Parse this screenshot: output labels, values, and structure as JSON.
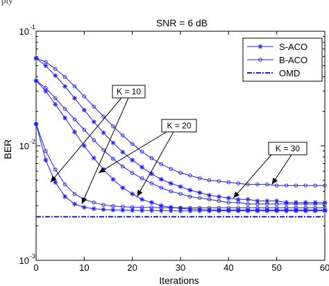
{
  "caption_fragment": "ply",
  "chart_data": {
    "type": "line",
    "title": "SNR = 6 dB",
    "xlabel": "Iterations",
    "ylabel": "BER",
    "xlim": [
      0,
      60
    ],
    "ylim": [
      0.001,
      0.1
    ],
    "yscale": "log",
    "xticks": [
      "0",
      "10",
      "20",
      "30",
      "40",
      "50",
      "60"
    ],
    "yticks": [
      {
        "value": 0.1,
        "base": "10",
        "exp": "-1"
      },
      {
        "value": 0.01,
        "base": "10",
        "exp": "-2"
      },
      {
        "value": 0.001,
        "base": "10",
        "exp": "-3"
      }
    ],
    "grid": false,
    "legend": {
      "placement": "top-right",
      "entries": [
        {
          "label": "S-ACO",
          "marker": "star",
          "style": "solid"
        },
        {
          "label": "B-ACO",
          "marker": "circle",
          "style": "solid"
        },
        {
          "label": "OMD",
          "marker": "none",
          "style": "dash-dot"
        }
      ]
    },
    "color": "#1a1aff",
    "x": [
      0,
      2,
      4,
      6,
      8,
      10,
      12,
      14,
      16,
      18,
      20,
      22,
      24,
      26,
      28,
      30,
      32,
      34,
      36,
      38,
      40,
      42,
      44,
      46,
      48,
      50,
      52,
      54,
      56,
      58,
      60
    ],
    "series": [
      {
        "group": "K = 10",
        "marker": "star",
        "values": [
          0.0155,
          0.0075,
          0.0048,
          0.0036,
          0.0031,
          0.0029,
          0.00282,
          0.00278,
          0.00275,
          0.00274,
          0.00273,
          0.00272,
          0.00272,
          0.00271,
          0.00271,
          0.0027,
          0.0027,
          0.0027,
          0.0027,
          0.0027,
          0.0027,
          0.0027,
          0.0027,
          0.0027,
          0.0027,
          0.0027,
          0.0027,
          0.0027,
          0.0027,
          0.0027,
          0.0027
        ]
      },
      {
        "group": "K = 10",
        "marker": "circle",
        "values": [
          0.0155,
          0.009,
          0.0062,
          0.0046,
          0.0038,
          0.0034,
          0.0032,
          0.00305,
          0.00298,
          0.00294,
          0.00291,
          0.0029,
          0.00289,
          0.00288,
          0.00288,
          0.00287,
          0.00287,
          0.00287,
          0.00287,
          0.00287,
          0.00287,
          0.00287,
          0.00287,
          0.00287,
          0.00287,
          0.00287,
          0.00287,
          0.00287,
          0.00287,
          0.00287,
          0.00287
        ]
      },
      {
        "group": "K = 20",
        "marker": "star",
        "values": [
          0.037,
          0.03,
          0.023,
          0.0175,
          0.0132,
          0.01,
          0.0078,
          0.0062,
          0.0051,
          0.0043,
          0.0038,
          0.0034,
          0.0032,
          0.003,
          0.0029,
          0.00285,
          0.0028,
          0.00278,
          0.00276,
          0.00275,
          0.00275,
          0.00275,
          0.00275,
          0.00275,
          0.00275,
          0.00275,
          0.00275,
          0.00275,
          0.00275,
          0.00275,
          0.00275
        ]
      },
      {
        "group": "K = 20",
        "marker": "circle",
        "values": [
          0.037,
          0.032,
          0.026,
          0.021,
          0.017,
          0.0138,
          0.0112,
          0.0092,
          0.0077,
          0.0066,
          0.0058,
          0.0052,
          0.0047,
          0.0043,
          0.004,
          0.0038,
          0.0036,
          0.0035,
          0.0034,
          0.0033,
          0.0032,
          0.0032,
          0.0031,
          0.0031,
          0.0031,
          0.0031,
          0.0031,
          0.0031,
          0.0031,
          0.0031,
          0.0031
        ]
      },
      {
        "group": "K = 30",
        "marker": "star",
        "values": [
          0.058,
          0.05,
          0.041,
          0.033,
          0.026,
          0.0205,
          0.0162,
          0.013,
          0.0106,
          0.0088,
          0.0075,
          0.0065,
          0.0057,
          0.0051,
          0.0047,
          0.0044,
          0.0041,
          0.0039,
          0.0037,
          0.0036,
          0.0035,
          0.0034,
          0.0034,
          0.0033,
          0.0033,
          0.0033,
          0.0032,
          0.0032,
          0.0032,
          0.0032,
          0.0032
        ]
      },
      {
        "group": "K = 30",
        "marker": "circle",
        "values": [
          0.058,
          0.054,
          0.047,
          0.04,
          0.033,
          0.027,
          0.022,
          0.018,
          0.0148,
          0.0123,
          0.0104,
          0.0089,
          0.0078,
          0.0069,
          0.0063,
          0.0058,
          0.0055,
          0.0052,
          0.005,
          0.0049,
          0.0048,
          0.0047,
          0.0046,
          0.0046,
          0.0046,
          0.0045,
          0.0045,
          0.0045,
          0.0045,
          0.0045,
          0.0045
        ]
      },
      {
        "group": "OMD",
        "marker": "none",
        "values": [
          0.0024,
          0.0024,
          0.0024,
          0.0024,
          0.0024,
          0.0024,
          0.0024,
          0.0024,
          0.0024,
          0.0024,
          0.0024,
          0.0024,
          0.0024,
          0.0024,
          0.0024,
          0.0024,
          0.0024,
          0.0024,
          0.0024,
          0.0024,
          0.0024,
          0.0024,
          0.0024,
          0.0024,
          0.0024,
          0.0024,
          0.0024,
          0.0024,
          0.0024,
          0.0024,
          0.0024
        ]
      }
    ],
    "annotations": [
      {
        "label": "K = 10",
        "arrows_to": [
          [
            3,
            0.0048
          ],
          [
            9.5,
            0.0031
          ]
        ]
      },
      {
        "label": "K = 20",
        "arrows_to": [
          [
            13,
            0.0058
          ],
          [
            21,
            0.0036
          ]
        ]
      },
      {
        "label": "K = 30",
        "arrows_to": [
          [
            41,
            0.0035
          ],
          [
            49,
            0.0046
          ]
        ]
      }
    ]
  }
}
